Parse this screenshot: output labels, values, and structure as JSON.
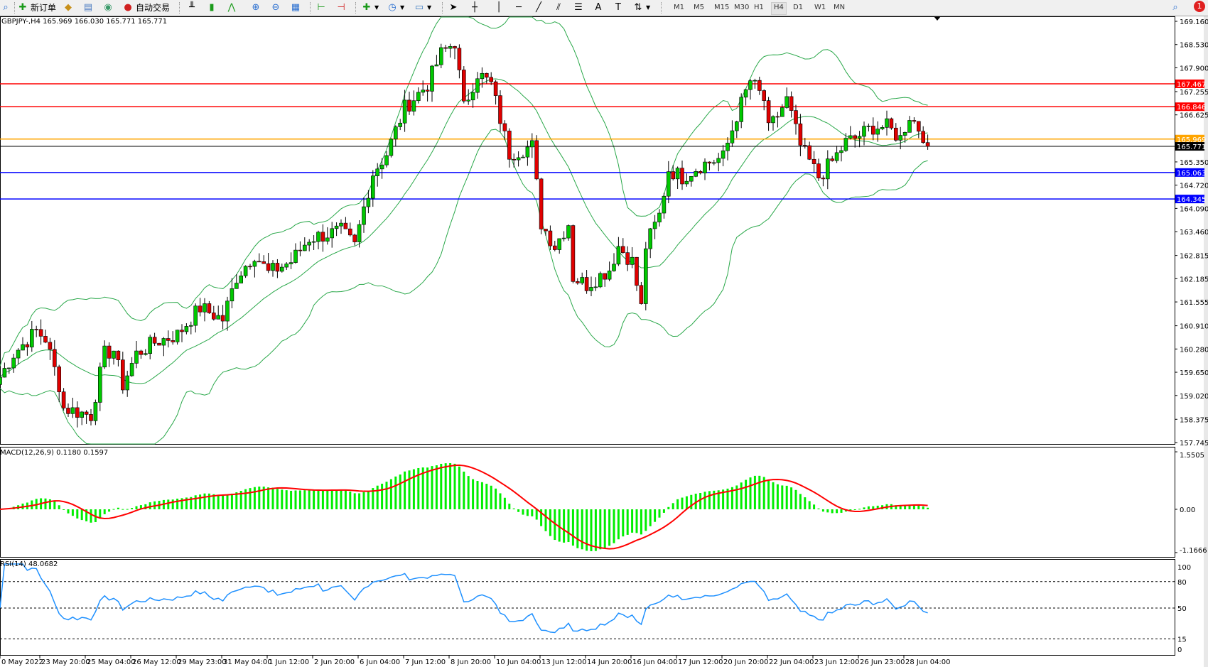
{
  "toolbar": {
    "new_order_label": "新订单",
    "auto_trading_label": "自动交易",
    "icons": [
      "search-icon",
      "new-order-icon",
      "market-watch-icon",
      "navigator-icon",
      "signals-icon",
      "auto-trading-icon",
      "bar-chart-icon",
      "candlestick-icon",
      "line-chart-icon",
      "zoom-in-icon",
      "zoom-out-icon",
      "tile-windows-icon",
      "chart-shift-icon",
      "autoscroll-icon",
      "indicators-icon",
      "periods-icon",
      "templates-icon",
      "cursor-icon",
      "crosshair-icon",
      "vertical-line-icon",
      "horizontal-line-icon",
      "trendline-icon",
      "equidistant-channel-icon",
      "fibonacci-icon",
      "text-icon",
      "text-label-icon",
      "arrows-icon"
    ],
    "timeframes": [
      "M1",
      "M5",
      "M15",
      "M30",
      "H1",
      "H4",
      "D1",
      "W1",
      "MN"
    ],
    "active_timeframe": "H4",
    "notification_count": "1"
  },
  "chart": {
    "symbol_info": "GBPJPY-,H4  165.969 166.030 165.771 165.771",
    "price_ticks": [
      "169.160",
      "168.530",
      "167.900",
      "167.255",
      "166.625",
      "165.350",
      "164.720",
      "164.090",
      "163.460",
      "162.815",
      "162.185",
      "161.555",
      "160.910",
      "160.280",
      "159.650",
      "159.020",
      "158.375",
      "157.745"
    ],
    "levels": [
      {
        "price": "167.467",
        "color": "#ff0000"
      },
      {
        "price": "166.846",
        "color": "#ff0000"
      },
      {
        "price": "165.969",
        "color": "#ffa500"
      },
      {
        "price": "165.771",
        "color": "#000000"
      },
      {
        "price": "165.063",
        "color": "#0000ff"
      },
      {
        "price": "164.345",
        "color": "#0000ff"
      }
    ],
    "colors": {
      "bull": "#00c800",
      "bear": "#e00000",
      "bands": "#2aa84a"
    },
    "price_path": [
      [
        0,
        159.52
      ],
      [
        3,
        160.15
      ],
      [
        8,
        160.77
      ],
      [
        10,
        160.56
      ],
      [
        13,
        159.31
      ],
      [
        14,
        158.68
      ],
      [
        20,
        158.48
      ],
      [
        23,
        160.15
      ],
      [
        25,
        160.25
      ],
      [
        27,
        159.31
      ],
      [
        30,
        160.15
      ],
      [
        34,
        160.46
      ],
      [
        39,
        160.67
      ],
      [
        44,
        161.4
      ],
      [
        49,
        161.08
      ],
      [
        52,
        162.23
      ],
      [
        56,
        162.86
      ],
      [
        59,
        162.34
      ],
      [
        64,
        162.65
      ],
      [
        68,
        163.28
      ],
      [
        75,
        163.48
      ],
      [
        78,
        163.07
      ],
      [
        80,
        164.11
      ],
      [
        82,
        165.05
      ],
      [
        85,
        165.57
      ],
      [
        89,
        166.82
      ],
      [
        94,
        167.45
      ],
      [
        97,
        168.28
      ],
      [
        100,
        168.6
      ],
      [
        102,
        166.82
      ],
      [
        105,
        167.76
      ],
      [
        108,
        167.45
      ],
      [
        112,
        165.57
      ],
      [
        117,
        165.78
      ],
      [
        119,
        163.69
      ],
      [
        122,
        163.07
      ],
      [
        125,
        163.69
      ],
      [
        126,
        162.23
      ],
      [
        129,
        162.02
      ],
      [
        134,
        162.44
      ],
      [
        136,
        163.07
      ],
      [
        139,
        162.65
      ],
      [
        141,
        161.4
      ],
      [
        142,
        163.07
      ],
      [
        145,
        163.9
      ],
      [
        147,
        165.15
      ],
      [
        150,
        164.94
      ],
      [
        154,
        165.26
      ],
      [
        159,
        165.47
      ],
      [
        162,
        166.61
      ],
      [
        165,
        167.55
      ],
      [
        168,
        167.03
      ],
      [
        169,
        166.2
      ],
      [
        173,
        167.03
      ],
      [
        176,
        165.78
      ],
      [
        180,
        164.94
      ],
      [
        183,
        165.36
      ],
      [
        186,
        165.88
      ],
      [
        188,
        165.99
      ],
      [
        192,
        166.3
      ],
      [
        195,
        166.3
      ],
      [
        198,
        165.99
      ],
      [
        200,
        166.61
      ],
      [
        203,
        166.09
      ],
      [
        204,
        165.771
      ]
    ],
    "time_labels": [
      "0 May 2022",
      "23 May 20:00",
      "25 May 04:00",
      "26 May 12:00",
      "29 May 23:00",
      "31 May 04:00",
      "1 Jun 12:00",
      "2 Jun 20:00",
      "6 Jun 04:00",
      "7 Jun 12:00",
      "8 Jun 20:00",
      "10 Jun 04:00",
      "13 Jun 12:00",
      "14 Jun 20:00",
      "16 Jun 04:00",
      "17 Jun 12:00",
      "20 Jun 20:00",
      "22 Jun 04:00",
      "23 Jun 12:00",
      "26 Jun 23:00",
      "28 Jun 04:00"
    ]
  },
  "macd": {
    "label": "MACD(12,26,9) 0.1180 0.1597",
    "ticks": [
      "1.5505",
      "0.00",
      "-1.1666"
    ],
    "colors": {
      "histogram": "#00ee00",
      "signal": "#ff0000"
    }
  },
  "rsi": {
    "label": "RSI(14) 48.0682",
    "ticks": [
      "100",
      "80",
      "50",
      "15",
      "0"
    ],
    "levels": [
      80,
      50,
      15
    ],
    "color": "#1e90ff"
  }
}
